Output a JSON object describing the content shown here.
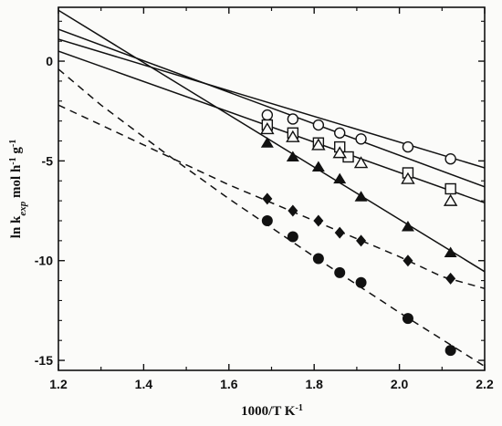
{
  "chart_data": {
    "type": "scatter",
    "xlabel": "1000/T K",
    "xlabel_sup": "-1",
    "ylabel": "ln k",
    "ylabel_sub": "exp",
    "ylabel_units": " mol h",
    "ylabel_units_sup1": "-1",
    "ylabel_units_mid": " g",
    "ylabel_units_sup2": "-1",
    "xlim": [
      1.2,
      2.2
    ],
    "ylim": [
      -15.5,
      2.7
    ],
    "x_ticks": [
      1.2,
      1.4,
      1.6,
      1.8,
      2.0,
      2.2
    ],
    "y_ticks": [
      0,
      -5,
      -10,
      -15
    ],
    "grid": false,
    "series": [
      {
        "marker": "circle-open",
        "line": "solid",
        "points": [
          [
            1.69,
            -2.7
          ],
          [
            1.75,
            -2.9
          ],
          [
            1.81,
            -3.2
          ],
          [
            1.86,
            -3.6
          ],
          [
            1.91,
            -3.9
          ],
          [
            2.02,
            -4.3
          ],
          [
            2.12,
            -4.9
          ]
        ],
        "fit": [
          [
            1.2,
            1.1
          ],
          [
            2.2,
            -5.35
          ]
        ]
      },
      {
        "marker": "square-open",
        "line": "solid",
        "points": [
          [
            1.69,
            -3.2
          ],
          [
            1.75,
            -3.6
          ],
          [
            1.81,
            -4.1
          ],
          [
            1.86,
            -4.3
          ],
          [
            1.88,
            -4.8
          ],
          [
            2.02,
            -5.6
          ],
          [
            2.12,
            -6.4
          ]
        ],
        "fit": [
          [
            1.2,
            1.6
          ],
          [
            2.2,
            -6.3
          ]
        ]
      },
      {
        "marker": "triangle-open",
        "line": "solid",
        "points": [
          [
            1.69,
            -3.4
          ],
          [
            1.75,
            -3.8
          ],
          [
            1.81,
            -4.2
          ],
          [
            1.86,
            -4.6
          ],
          [
            1.91,
            -5.1
          ],
          [
            2.02,
            -5.9
          ],
          [
            2.12,
            -7.0
          ]
        ],
        "fit": [
          [
            1.2,
            0.5
          ],
          [
            2.2,
            -7.1
          ]
        ]
      },
      {
        "marker": "triangle-filled",
        "line": "solid",
        "points": [
          [
            1.69,
            -4.1
          ],
          [
            1.75,
            -4.8
          ],
          [
            1.81,
            -5.3
          ],
          [
            1.86,
            -5.9
          ],
          [
            1.91,
            -6.8
          ],
          [
            2.02,
            -8.3
          ],
          [
            2.12,
            -9.6
          ]
        ],
        "fit": [
          [
            1.2,
            2.55
          ],
          [
            2.2,
            -10.55
          ]
        ]
      },
      {
        "marker": "diamond-filled",
        "line": "dashed",
        "points": [
          [
            1.69,
            -6.9
          ],
          [
            1.75,
            -7.5
          ],
          [
            1.81,
            -8.0
          ],
          [
            1.86,
            -8.6
          ],
          [
            1.91,
            -9.0
          ],
          [
            2.02,
            -10.0
          ],
          [
            2.12,
            -10.9
          ]
        ],
        "fit": [
          [
            1.2,
            -2.2
          ],
          [
            1.3,
            -3.2
          ],
          [
            1.45,
            -4.7
          ],
          [
            1.6,
            -6.2
          ],
          [
            1.8,
            -8.0
          ],
          [
            2.0,
            -9.8
          ],
          [
            2.1,
            -10.8
          ],
          [
            2.2,
            -11.4
          ]
        ]
      },
      {
        "marker": "circle-filled",
        "line": "dashed",
        "points": [
          [
            1.69,
            -8.0
          ],
          [
            1.75,
            -8.8
          ],
          [
            1.81,
            -9.9
          ],
          [
            1.86,
            -10.6
          ],
          [
            1.91,
            -11.1
          ],
          [
            2.02,
            -12.9
          ],
          [
            2.12,
            -14.5
          ]
        ],
        "fit": [
          [
            1.2,
            -0.4
          ],
          [
            1.3,
            -2.2
          ],
          [
            1.45,
            -4.6
          ],
          [
            1.6,
            -6.9
          ],
          [
            1.8,
            -9.8
          ],
          [
            2.0,
            -12.6
          ],
          [
            2.2,
            -15.3
          ]
        ]
      }
    ]
  }
}
